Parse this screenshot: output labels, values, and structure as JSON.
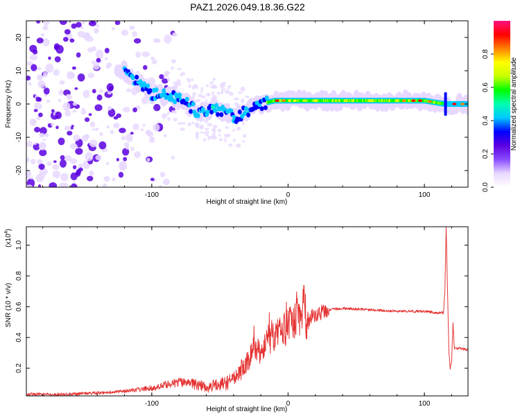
{
  "figure_title": "PAZ1.2026.049.18.36.G22",
  "chart_data": [
    {
      "type": "heatmap",
      "name": "spectrogram",
      "xlabel": "Height of straight line (km)",
      "ylabel": "Frequency (Hz)",
      "xlim": [
        -192,
        132
      ],
      "ylim": [
        -25,
        25
      ],
      "x_ticks": [
        -100,
        0,
        100
      ],
      "x_tick_labels": [
        "-100",
        "0",
        "100"
      ],
      "y_ticks": [
        -20,
        -10,
        0,
        10,
        20
      ],
      "y_tick_labels": [
        "-20",
        "-10",
        "0",
        "10",
        "20"
      ],
      "ridge": {
        "description": "frequency of dominant spectral line vs height",
        "x": [
          -120,
          -100,
          -80,
          -65,
          -55,
          -45,
          -38,
          -30,
          -20,
          -10,
          0,
          20,
          50,
          100,
          115,
          132
        ],
        "y": [
          10,
          3,
          2,
          -3,
          -1,
          -3,
          -4,
          -2,
          0,
          1,
          1,
          1,
          1,
          1,
          0,
          0
        ]
      },
      "colorbar": {
        "label": "Normalized spectral amplitude",
        "ticks": [
          0.0,
          0.2,
          0.4,
          0.6,
          0.8
        ],
        "tick_labels": [
          "0.0",
          "0.2",
          "0.4",
          "0.6",
          "0.8"
        ],
        "range": [
          0,
          1
        ],
        "colors": [
          "#ffffff",
          "#e8d8ff",
          "#8a4dff",
          "#5a00e0",
          "#0000ff",
          "#00c8ff",
          "#00ffb0",
          "#00ff00",
          "#c8ff00",
          "#ffff00",
          "#ff8000",
          "#ff0000",
          "#ff1080"
        ]
      }
    },
    {
      "type": "line",
      "name": "snr",
      "xlabel": "Height of straight line (km)",
      "ylabel": "SNR (10 * v/v)",
      "y_multiplier": "(x10",
      "y_multiplier_exp": "4",
      "y_multiplier_close": ")",
      "xlim": [
        -192,
        132
      ],
      "ylim": [
        0.02,
        1.12
      ],
      "x_ticks": [
        -100,
        0,
        100
      ],
      "x_tick_labels": [
        "-100",
        "0",
        "100"
      ],
      "y_ticks": [
        0.2,
        0.4,
        0.6,
        0.8,
        1.0
      ],
      "y_tick_labels": [
        "0.2",
        "0.4",
        "0.6",
        "0.8",
        "1.0"
      ],
      "color": "#e53333",
      "x": [
        -192,
        -160,
        -140,
        -120,
        -100,
        -90,
        -80,
        -70,
        -60,
        -50,
        -40,
        -35,
        -30,
        -25,
        -20,
        -15,
        -10,
        -5,
        0,
        5,
        10,
        12,
        14,
        16,
        20,
        30,
        40,
        60,
        80,
        100,
        110,
        114,
        115,
        116,
        117,
        118,
        119,
        120,
        121,
        122,
        125,
        132
      ],
      "y": [
        0.03,
        0.03,
        0.04,
        0.05,
        0.07,
        0.09,
        0.11,
        0.1,
        0.08,
        0.09,
        0.12,
        0.18,
        0.25,
        0.3,
        0.32,
        0.36,
        0.4,
        0.43,
        0.47,
        0.51,
        0.56,
        0.63,
        0.45,
        0.52,
        0.55,
        0.58,
        0.59,
        0.58,
        0.57,
        0.57,
        0.56,
        0.56,
        0.7,
        1.12,
        0.7,
        0.3,
        0.2,
        0.25,
        0.5,
        0.33,
        0.33,
        0.32
      ]
    }
  ]
}
